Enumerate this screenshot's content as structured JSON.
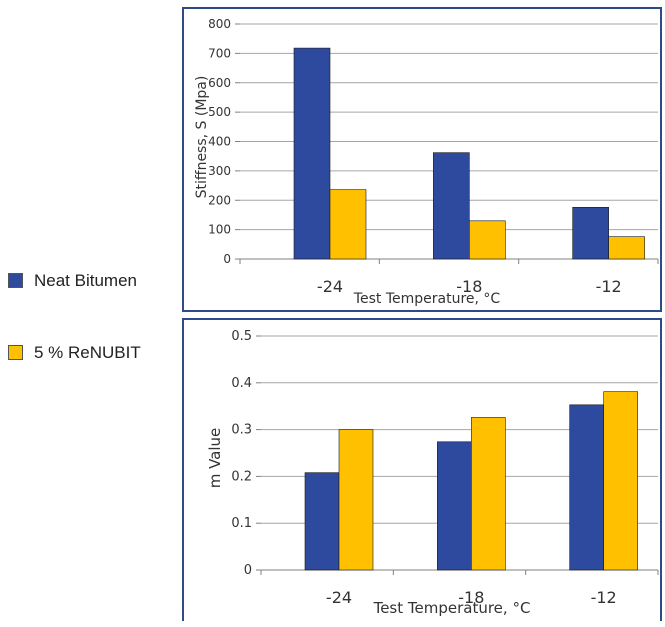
{
  "legend": {
    "items": [
      {
        "label": "Neat Bitumen",
        "color": "#2E4A9E"
      },
      {
        "label": "5 % ReNUBIT",
        "color": "#FFC000"
      }
    ]
  },
  "chart_data": [
    {
      "type": "bar",
      "categories": [
        "-24",
        "-18",
        "-12"
      ],
      "series": [
        {
          "name": "Neat Bitumen",
          "values": [
            718,
            362,
            176
          ]
        },
        {
          "name": "5 % ReNUBIT",
          "values": [
            236,
            130,
            76
          ]
        }
      ],
      "xlabel": "Test Temperature, °C",
      "ylabel": "Stiffness, S (Mpa)",
      "ylim": [
        0,
        800
      ],
      "yticks": [
        "0",
        "100",
        "200",
        "300",
        "400",
        "500",
        "600",
        "700",
        "800"
      ],
      "grid": true,
      "legend": "left"
    },
    {
      "type": "bar",
      "categories": [
        "-24",
        "-18",
        "-12"
      ],
      "series": [
        {
          "name": "Neat Bitumen",
          "values": [
            0.208,
            0.274,
            0.353
          ]
        },
        {
          "name": "5 % ReNUBIT",
          "values": [
            0.3,
            0.326,
            0.381
          ]
        }
      ],
      "xlabel": "Test Temperature, °C",
      "ylabel": "m Value",
      "ylim": [
        0,
        0.5
      ],
      "yticks": [
        "0",
        "0.1",
        "0.2",
        "0.3",
        "0.4",
        "0.5"
      ],
      "grid": true,
      "legend": "left"
    }
  ]
}
